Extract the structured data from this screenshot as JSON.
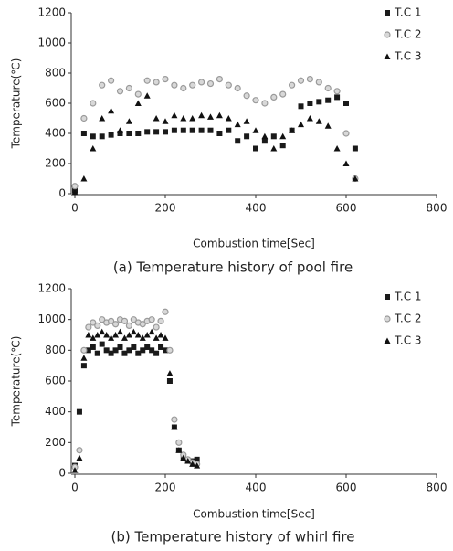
{
  "chart_data": [
    {
      "type": "scatter",
      "caption": "(a) Temperature history of pool fire",
      "x_label": "Combustion time[Sec]",
      "y_label": "Temperature(℃)",
      "xlim": [
        0,
        800
      ],
      "ylim": [
        0,
        1200
      ],
      "xticks": [
        0,
        200,
        400,
        600,
        800
      ],
      "yticks": [
        0,
        200,
        400,
        600,
        800,
        1000,
        1200
      ],
      "x": [
        0,
        20,
        40,
        60,
        80,
        100,
        120,
        140,
        160,
        180,
        200,
        220,
        240,
        260,
        280,
        300,
        320,
        340,
        360,
        380,
        400,
        420,
        440,
        460,
        480,
        500,
        520,
        540,
        560,
        580,
        600,
        620
      ],
      "series": [
        {
          "name": "T.C 1",
          "color": "#1a1a1a",
          "marker": "square",
          "values": [
            20,
            400,
            380,
            380,
            390,
            400,
            400,
            400,
            410,
            410,
            410,
            420,
            420,
            420,
            420,
            420,
            400,
            420,
            350,
            380,
            300,
            350,
            380,
            320,
            420,
            580,
            600,
            610,
            620,
            640,
            600,
            300
          ]
        },
        {
          "name": "T.C 2",
          "color": "#9a9a9a",
          "marker": "circle",
          "values": [
            50,
            500,
            600,
            720,
            750,
            680,
            700,
            660,
            750,
            740,
            760,
            720,
            700,
            720,
            740,
            730,
            760,
            720,
            700,
            650,
            620,
            600,
            640,
            660,
            720,
            750,
            760,
            740,
            700,
            680,
            400,
            100
          ]
        },
        {
          "name": "T.C 3",
          "color": "#111111",
          "marker": "triangle",
          "values": [
            10,
            100,
            300,
            500,
            550,
            420,
            480,
            600,
            650,
            500,
            480,
            520,
            500,
            500,
            520,
            510,
            520,
            500,
            460,
            480,
            420,
            380,
            300,
            380,
            420,
            460,
            500,
            480,
            450,
            300,
            200,
            100
          ]
        }
      ]
    },
    {
      "type": "scatter",
      "caption": "(b) Temperature history of whirl fire",
      "x_label": "Combustion time[Sec]",
      "y_label": "Temperature(℃)",
      "xlim": [
        0,
        800
      ],
      "ylim": [
        0,
        1200
      ],
      "xticks": [
        0,
        200,
        400,
        600,
        800
      ],
      "yticks": [
        0,
        200,
        400,
        600,
        800,
        1000,
        1200
      ],
      "x": [
        0,
        10,
        20,
        30,
        40,
        50,
        60,
        70,
        80,
        90,
        100,
        110,
        120,
        130,
        140,
        150,
        160,
        170,
        180,
        190,
        200,
        210,
        220,
        230,
        240,
        250,
        260,
        270
      ],
      "series": [
        {
          "name": "T.C 1",
          "color": "#1a1a1a",
          "marker": "square",
          "values": [
            50,
            400,
            700,
            800,
            820,
            780,
            840,
            800,
            780,
            800,
            820,
            780,
            800,
            820,
            780,
            800,
            820,
            800,
            780,
            820,
            800,
            600,
            300,
            150,
            100,
            80,
            80,
            90
          ]
        },
        {
          "name": "T.C 2",
          "color": "#9a9a9a",
          "marker": "circle",
          "values": [
            40,
            150,
            800,
            950,
            980,
            960,
            1000,
            980,
            990,
            970,
            1000,
            990,
            960,
            1000,
            980,
            970,
            990,
            1000,
            950,
            990,
            1050,
            800,
            350,
            200,
            120,
            90,
            70,
            60
          ]
        },
        {
          "name": "T.C 3",
          "color": "#111111",
          "marker": "triangle",
          "values": [
            20,
            100,
            750,
            900,
            880,
            900,
            920,
            900,
            880,
            900,
            920,
            880,
            900,
            920,
            900,
            880,
            900,
            920,
            880,
            900,
            880,
            650,
            300,
            150,
            100,
            80,
            60,
            50
          ]
        }
      ]
    }
  ]
}
